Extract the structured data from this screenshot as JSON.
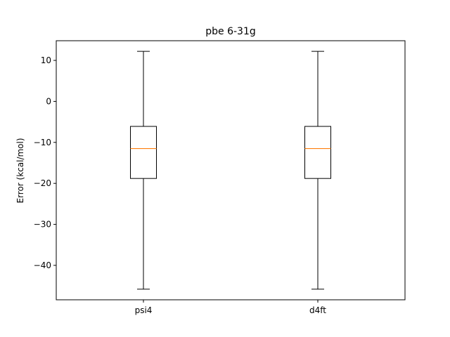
{
  "chart_data": {
    "type": "box",
    "title": "pbe 6-31g",
    "xlabel": "",
    "ylabel": "Error (kcal/mol)",
    "categories": [
      "psi4",
      "d4ft"
    ],
    "ylim": [
      -48.4,
      14.8
    ],
    "yticks": [
      10,
      0,
      -10,
      -20,
      -30,
      -40
    ],
    "ytick_labels": [
      "10",
      "0",
      "−10",
      "−20",
      "−30",
      "−40"
    ],
    "boxes": [
      {
        "label": "psi4",
        "whisker_low": -45.8,
        "q1": -18.8,
        "median": -11.5,
        "q3": -6.1,
        "whisker_high": 12.2
      },
      {
        "label": "d4ft",
        "whisker_low": -45.8,
        "q1": -18.8,
        "median": -11.5,
        "q3": -6.1,
        "whisker_high": 12.2
      }
    ],
    "colors": {
      "box": "#000000",
      "median": "#ff7f0e"
    },
    "grid": false,
    "legend": "none"
  }
}
